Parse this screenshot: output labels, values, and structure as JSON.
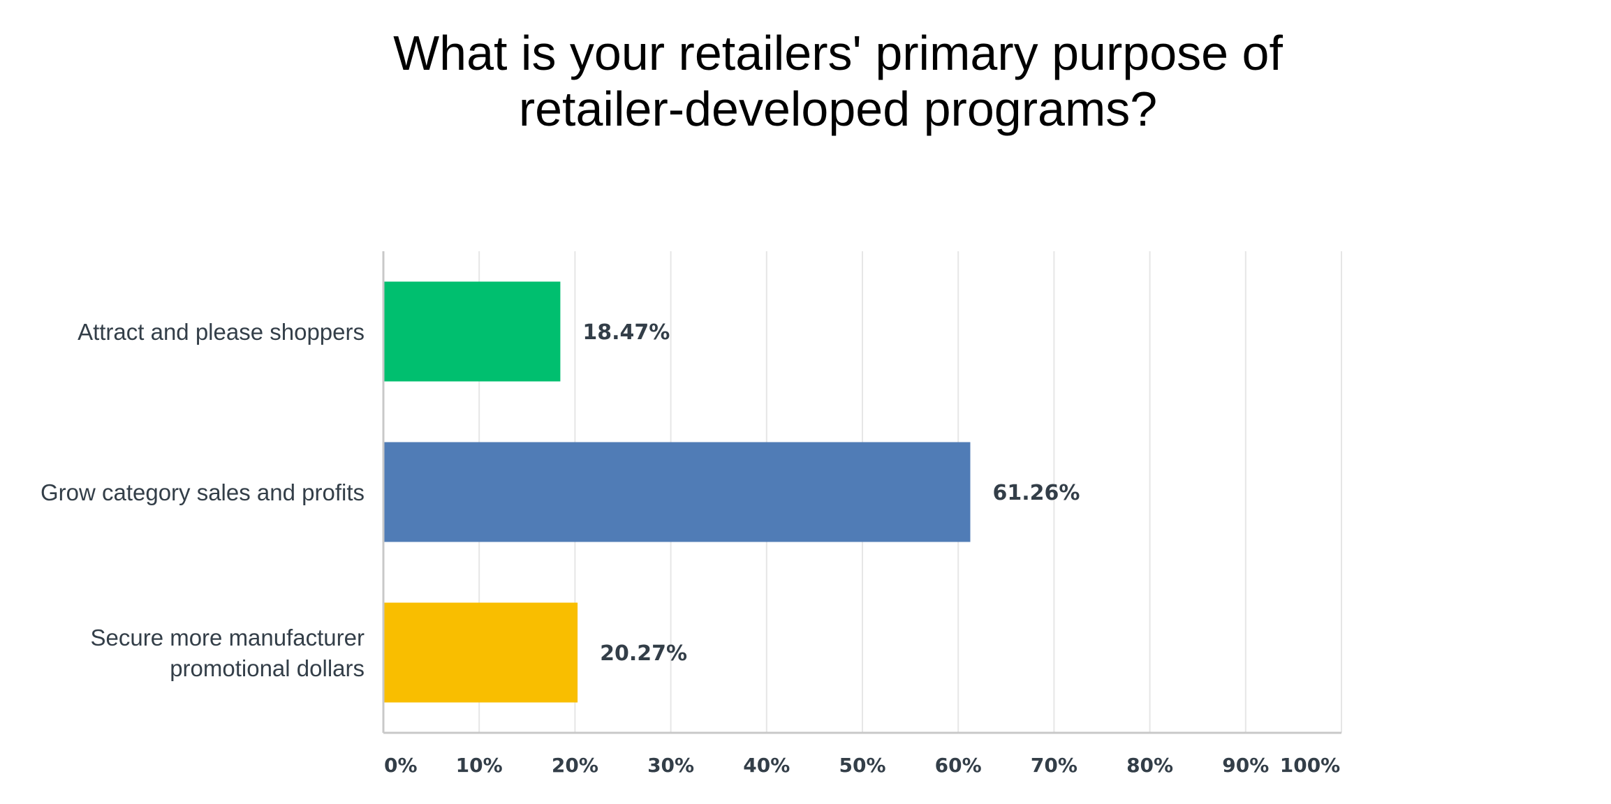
{
  "chart_data": {
    "type": "bar",
    "orientation": "horizontal",
    "title_lines": [
      "What is your retailers' primary purpose of",
      "retailer-developed programs?"
    ],
    "categories": [
      [
        "Attract and please shoppers"
      ],
      [
        "Grow category sales and profits"
      ],
      [
        "Secure more manufacturer",
        "promotional dollars"
      ]
    ],
    "values": [
      18.47,
      61.26,
      20.27
    ],
    "value_labels": [
      "18.47%",
      "61.26%",
      "20.27%"
    ],
    "colors": [
      "#00bf6f",
      "#507cb6",
      "#f9be00"
    ],
    "x_ticks": [
      0,
      10,
      20,
      30,
      40,
      50,
      60,
      70,
      80,
      90,
      100
    ],
    "x_tick_labels": [
      "0%",
      "10%",
      "20%",
      "30%",
      "40%",
      "50%",
      "60%",
      "70%",
      "80%",
      "90%",
      "100%"
    ],
    "xlim": [
      0,
      100
    ],
    "grid": true,
    "legend": "none"
  }
}
